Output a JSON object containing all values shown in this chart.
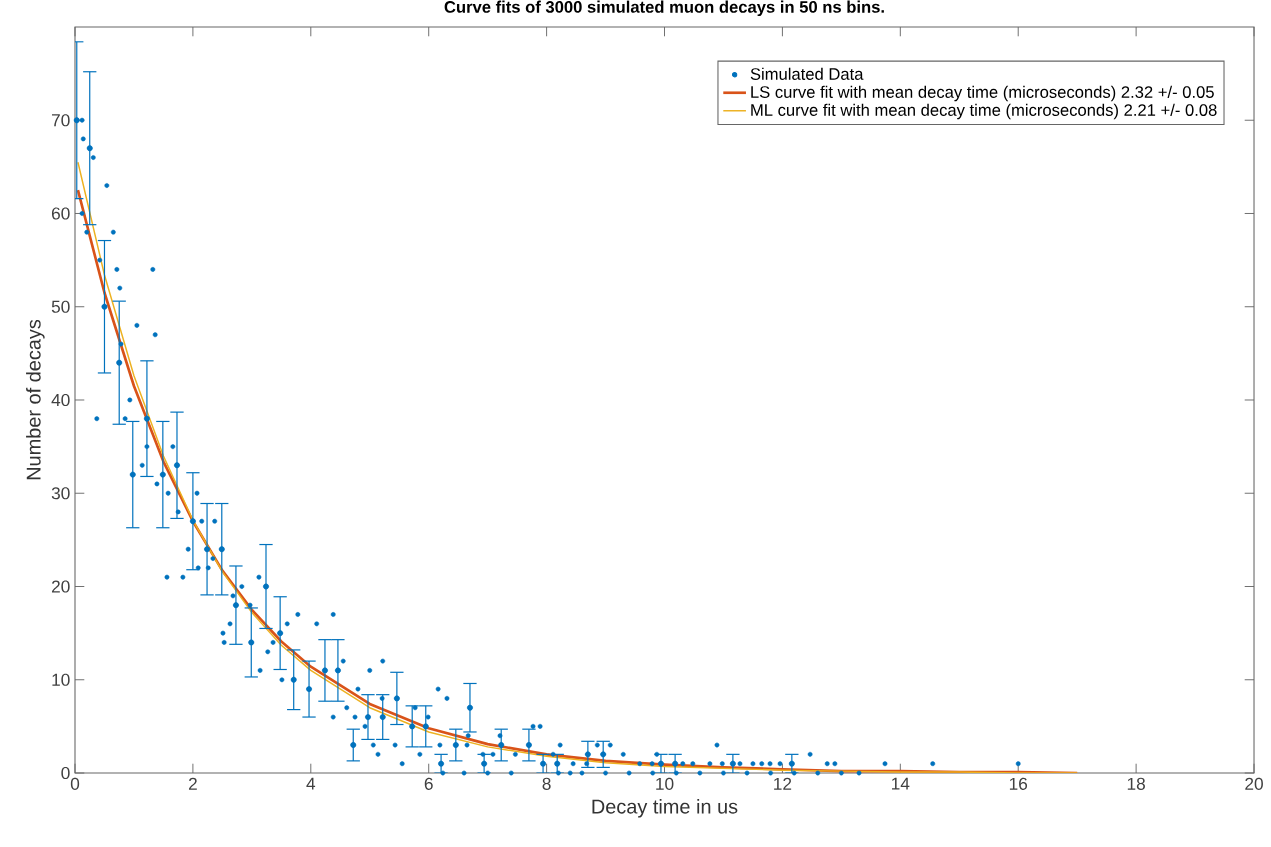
{
  "chart_data": {
    "type": "scatter",
    "title": "Curve fits of 3000 simulated muon decays in 50 ns bins.",
    "xlabel": "Decay time in us",
    "ylabel": "Number of decays",
    "xlim": [
      0,
      20
    ],
    "ylim": [
      0,
      80
    ],
    "xticks": [
      0,
      2,
      4,
      6,
      8,
      10,
      12,
      14,
      16,
      18,
      20
    ],
    "yticks": [
      0,
      10,
      20,
      30,
      40,
      50,
      60,
      70
    ],
    "grid": false,
    "legend": "top right",
    "series": [
      {
        "name": "Simulated Data",
        "marker": "circle",
        "color": "#0072bd",
        "x": [
          0.03,
          0.12,
          0.14,
          0.25,
          0.31,
          0.54,
          0.12,
          0.2,
          0.65,
          0.42,
          0.5,
          0.71,
          1.32,
          0.76,
          0.75,
          1.05,
          1.36,
          0.78,
          1.22,
          1.22,
          0.37,
          0.93,
          0.85,
          0.98,
          1.14,
          1.39,
          1.49,
          1.58,
          1.73,
          1.66,
          1.75,
          1.56,
          1.83,
          2.07,
          2.0,
          1.92,
          2.09,
          2.24,
          2.15,
          2.37,
          2.49,
          2.26,
          2.34,
          2.73,
          2.83,
          2.68,
          2.51,
          2.53,
          2.63,
          2.97,
          2.99,
          3.12,
          3.24,
          3.14,
          3.27,
          3.48,
          3.36,
          3.6,
          3.78,
          3.51,
          3.71,
          4.1,
          4.38,
          3.97,
          4.24,
          4.46,
          4.55,
          4.38,
          4.61,
          4.72,
          5.22,
          5.0,
          4.8,
          4.75,
          4.97,
          4.92,
          5.06,
          5.14,
          5.22,
          5.21,
          5.46,
          5.43,
          5.55,
          5.72,
          5.77,
          5.99,
          5.95,
          5.85,
          6.16,
          6.31,
          6.19,
          6.21,
          6.46,
          6.7,
          6.67,
          6.65,
          6.92,
          6.94,
          7.21,
          7.23,
          7.09,
          7.47,
          7.7,
          7.89,
          7.77,
          7.94,
          8.18,
          8.23,
          8.11,
          8.45,
          8.7,
          8.96,
          8.86,
          9.08,
          9.3,
          8.68,
          9.58,
          9.87,
          9.79,
          9.94,
          10.18,
          10.31,
          10.48,
          10.77,
          10.89,
          10.98,
          11.16,
          11.28,
          11.5,
          11.65,
          11.79,
          11.96,
          12.16,
          12.47,
          12.76,
          12.89,
          13.74,
          14.55,
          16.0,
          6.24,
          6.6,
          7.0,
          7.4,
          8.4,
          8.2,
          8.6,
          9.0,
          9.4,
          9.8,
          10.2,
          10.6,
          11.0,
          11.4,
          11.8,
          12.2,
          12.6,
          13.0,
          13.3
        ],
        "values": [
          70,
          70,
          68,
          67,
          66,
          63,
          60,
          58,
          58,
          55,
          50,
          54,
          54,
          52,
          44,
          48,
          47,
          46,
          38,
          35,
          38,
          40,
          38,
          32,
          33,
          31,
          32,
          30,
          33,
          35,
          28,
          21,
          21,
          30,
          27,
          24,
          22,
          24,
          27,
          27,
          24,
          22,
          23,
          18,
          20,
          19,
          15,
          14,
          16,
          18,
          14,
          21,
          20,
          11,
          13,
          15,
          14,
          16,
          17,
          10,
          10,
          16,
          17,
          9,
          11,
          11,
          12,
          6,
          7,
          3,
          12,
          11,
          9,
          6,
          6,
          5,
          3,
          2,
          6,
          8,
          8,
          3,
          1,
          5,
          7,
          6,
          5,
          2,
          9,
          8,
          3,
          1,
          3,
          7,
          4,
          3,
          2,
          1,
          4,
          3,
          2,
          2,
          3,
          5,
          5,
          1,
          1,
          3,
          2,
          1,
          2,
          2,
          3,
          3,
          2,
          1,
          1,
          2,
          1,
          1,
          1,
          1,
          1,
          1,
          3,
          1,
          1,
          1,
          1,
          1,
          1,
          1,
          1,
          2,
          1,
          1,
          1,
          1,
          1,
          0,
          0,
          0,
          0,
          0,
          0,
          0,
          0,
          0,
          0,
          0,
          0,
          0,
          0,
          0,
          0,
          0,
          0,
          0
        ],
        "errors": [
          8.4,
          null,
          null,
          8.2,
          null,
          null,
          null,
          null,
          null,
          null,
          7.1,
          null,
          null,
          null,
          6.6,
          null,
          null,
          null,
          6.2,
          null,
          null,
          null,
          null,
          5.7,
          null,
          null,
          5.7,
          null,
          5.7,
          null,
          null,
          null,
          null,
          null,
          5.2,
          null,
          null,
          4.9,
          null,
          null,
          4.9,
          null,
          null,
          4.2,
          null,
          null,
          null,
          null,
          null,
          null,
          3.7,
          null,
          4.5,
          null,
          null,
          3.9,
          null,
          null,
          null,
          null,
          3.2,
          null,
          null,
          3,
          3.3,
          3.3,
          null,
          null,
          null,
          1.7,
          null,
          null,
          null,
          null,
          2.4,
          null,
          null,
          null,
          2.4,
          null,
          2.8,
          null,
          null,
          2.2,
          null,
          null,
          2.2,
          null,
          null,
          null,
          null,
          1,
          1.7,
          2.6,
          null,
          null,
          null,
          1,
          null,
          1.7,
          null,
          null,
          1.7,
          null,
          null,
          1,
          1,
          null,
          null,
          null,
          1.4,
          1.4,
          null,
          null,
          null,
          null,
          null,
          null,
          null,
          1,
          1,
          null,
          null,
          null,
          null,
          null,
          1,
          null,
          null,
          null,
          null,
          null,
          1,
          null,
          null,
          null,
          null,
          null,
          null,
          null,
          null,
          null,
          null,
          null,
          null,
          null,
          null,
          null,
          null,
          null,
          null,
          null,
          null,
          null,
          null,
          null,
          null,
          null
        ]
      },
      {
        "name": "LS curve fit with mean decay time (microseconds) 2.32 +/- 0.05",
        "type": "line",
        "marker": "none",
        "color": "#d95319",
        "x": [
          0.05,
          0.5,
          1,
          1.5,
          2,
          2.5,
          3,
          3.5,
          4,
          5,
          6,
          7,
          8,
          9,
          10,
          11,
          12,
          13,
          14,
          15,
          16,
          17
        ],
        "values": [
          62.5,
          51.5,
          41.5,
          33.4,
          27.0,
          21.7,
          17.5,
          14.1,
          11.4,
          7.4,
          4.8,
          3.1,
          2.0,
          1.3,
          0.9,
          0.6,
          0.4,
          0.2,
          0.2,
          0.1,
          0.1,
          0.0
        ]
      },
      {
        "name": "ML curve fit with mean decay time (microseconds) 2.21 +/- 0.08",
        "type": "line",
        "marker": "none",
        "color": "#edb120",
        "x": [
          0.05,
          0.5,
          1,
          1.5,
          2,
          2.5,
          3,
          3.5,
          4,
          5,
          6,
          7,
          8,
          9,
          10,
          11,
          12,
          13,
          14,
          15,
          16,
          17
        ],
        "values": [
          65.5,
          53.4,
          42.6,
          34.0,
          27.1,
          21.6,
          17.2,
          13.7,
          11.0,
          7.0,
          4.4,
          2.8,
          1.8,
          1.1,
          0.7,
          0.5,
          0.3,
          0.2,
          0.1,
          0.1,
          0.0,
          0.0
        ]
      }
    ]
  }
}
